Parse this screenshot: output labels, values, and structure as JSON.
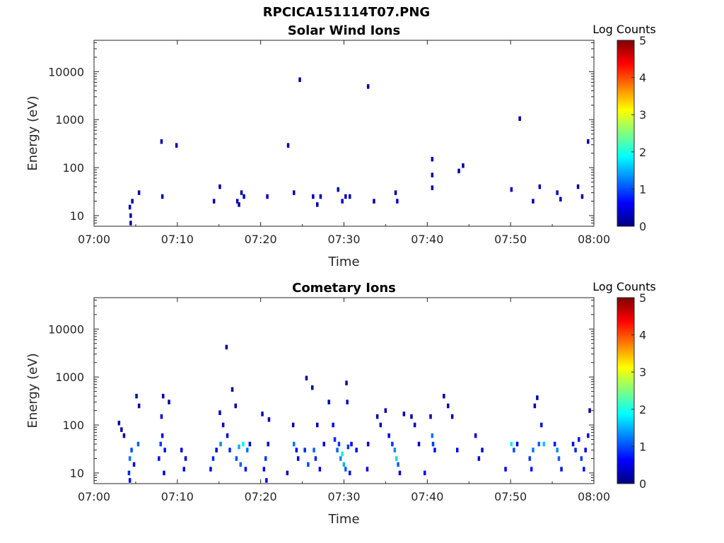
{
  "figure": {
    "title": "RPCICA151114T07.PNG"
  },
  "colormap": {
    "name": "jet",
    "stops": [
      "#00007f",
      "#0000ff",
      "#007fff",
      "#00ffff",
      "#7fff7f",
      "#ffff00",
      "#ff7f00",
      "#ff0000",
      "#7f0000"
    ]
  },
  "chart_data": [
    {
      "type": "heatmap",
      "title": "Solar Wind Ions",
      "xlabel": "Time",
      "ylabel": "Energy (eV)",
      "x_ticks": [
        "07:00",
        "07:10",
        "07:20",
        "07:30",
        "07:40",
        "07:50",
        "08:00"
      ],
      "xlim_minutes": [
        0,
        60
      ],
      "y_scale": "log",
      "y_ticks": [
        "10",
        "100",
        "1000",
        "10000"
      ],
      "ylim_eV": [
        6,
        45000
      ],
      "colorbar": {
        "label": "Log Counts",
        "range": [
          0,
          5
        ],
        "ticks": [
          "0",
          "1",
          "2",
          "3",
          "4",
          "5"
        ]
      },
      "cells": [
        {
          "t": 4.3,
          "e": 15,
          "v": 0.2
        },
        {
          "t": 4.4,
          "e": 10,
          "v": 0.2
        },
        {
          "t": 4.4,
          "e": 7,
          "v": 0.2
        },
        {
          "t": 4.6,
          "e": 20,
          "v": 0.2
        },
        {
          "t": 5.4,
          "e": 30,
          "v": 0.2
        },
        {
          "t": 8.2,
          "e": 25,
          "v": 0.3
        },
        {
          "t": 8.1,
          "e": 350,
          "v": 0.2
        },
        {
          "t": 9.9,
          "e": 290,
          "v": 0.2
        },
        {
          "t": 14.4,
          "e": 20,
          "v": 0.2
        },
        {
          "t": 15.1,
          "e": 40,
          "v": 0.2
        },
        {
          "t": 17.2,
          "e": 20,
          "v": 0.3
        },
        {
          "t": 17.4,
          "e": 17,
          "v": 0.2
        },
        {
          "t": 17.7,
          "e": 30,
          "v": 0.2
        },
        {
          "t": 18.0,
          "e": 25,
          "v": 0.3
        },
        {
          "t": 20.8,
          "e": 25,
          "v": 0.3
        },
        {
          "t": 23.3,
          "e": 290,
          "v": 0.2
        },
        {
          "t": 24.0,
          "e": 30,
          "v": 0.2
        },
        {
          "t": 24.7,
          "e": 6800,
          "v": 0.2
        },
        {
          "t": 26.3,
          "e": 25,
          "v": 0.2
        },
        {
          "t": 26.8,
          "e": 17,
          "v": 0.2
        },
        {
          "t": 27.2,
          "e": 25,
          "v": 0.3
        },
        {
          "t": 29.3,
          "e": 35,
          "v": 0.2
        },
        {
          "t": 29.8,
          "e": 20,
          "v": 0.4
        },
        {
          "t": 30.2,
          "e": 25,
          "v": 0.3
        },
        {
          "t": 30.7,
          "e": 25,
          "v": 0.2
        },
        {
          "t": 32.9,
          "e": 4900,
          "v": 0.2
        },
        {
          "t": 33.6,
          "e": 20,
          "v": 0.2
        },
        {
          "t": 36.2,
          "e": 30,
          "v": 0.2
        },
        {
          "t": 36.4,
          "e": 20,
          "v": 0.4
        },
        {
          "t": 40.6,
          "e": 150,
          "v": 0.2
        },
        {
          "t": 40.6,
          "e": 70,
          "v": 0.2
        },
        {
          "t": 40.6,
          "e": 38,
          "v": 0.2
        },
        {
          "t": 43.8,
          "e": 85,
          "v": 0.2
        },
        {
          "t": 44.3,
          "e": 110,
          "v": 0.2
        },
        {
          "t": 50.1,
          "e": 35,
          "v": 0.3
        },
        {
          "t": 51.1,
          "e": 1050,
          "v": 0.2
        },
        {
          "t": 52.7,
          "e": 20,
          "v": 0.2
        },
        {
          "t": 53.5,
          "e": 40,
          "v": 0.2
        },
        {
          "t": 55.6,
          "e": 30,
          "v": 0.3
        },
        {
          "t": 56.0,
          "e": 22,
          "v": 0.3
        },
        {
          "t": 58.1,
          "e": 40,
          "v": 0.2
        },
        {
          "t": 58.6,
          "e": 25,
          "v": 0.2
        },
        {
          "t": 59.3,
          "e": 350,
          "v": 0.2
        }
      ]
    },
    {
      "type": "heatmap",
      "title": "Cometary Ions",
      "xlabel": "Time",
      "ylabel": "Energy (eV)",
      "x_ticks": [
        "07:00",
        "07:10",
        "07:20",
        "07:30",
        "07:40",
        "07:50",
        "08:00"
      ],
      "xlim_minutes": [
        0,
        60
      ],
      "y_scale": "log",
      "y_ticks": [
        "10",
        "100",
        "1000",
        "10000"
      ],
      "ylim_eV": [
        6,
        45000
      ],
      "colorbar": {
        "label": "Log Counts",
        "range": [
          0,
          5
        ],
        "ticks": [
          "0",
          "1",
          "2",
          "3",
          "4",
          "5"
        ]
      },
      "cells": [
        {
          "t": 3.0,
          "e": 110,
          "v": 0.2
        },
        {
          "t": 3.3,
          "e": 80,
          "v": 0.2
        },
        {
          "t": 3.6,
          "e": 60,
          "v": 0.2
        },
        {
          "t": 4.2,
          "e": 10,
          "v": 0.8
        },
        {
          "t": 4.3,
          "e": 20,
          "v": 1.2
        },
        {
          "t": 4.3,
          "e": 7,
          "v": 0.6
        },
        {
          "t": 4.5,
          "e": 30,
          "v": 1.0
        },
        {
          "t": 4.8,
          "e": 15,
          "v": 0.6
        },
        {
          "t": 5.3,
          "e": 40,
          "v": 1.1
        },
        {
          "t": 5.1,
          "e": 400,
          "v": 0.2
        },
        {
          "t": 5.4,
          "e": 250,
          "v": 0.2
        },
        {
          "t": 7.8,
          "e": 20,
          "v": 0.7
        },
        {
          "t": 8.0,
          "e": 40,
          "v": 0.9
        },
        {
          "t": 8.1,
          "e": 150,
          "v": 0.5
        },
        {
          "t": 8.2,
          "e": 60,
          "v": 0.6
        },
        {
          "t": 8.3,
          "e": 400,
          "v": 0.3
        },
        {
          "t": 8.5,
          "e": 30,
          "v": 0.7
        },
        {
          "t": 8.4,
          "e": 10,
          "v": 0.6
        },
        {
          "t": 9.0,
          "e": 300,
          "v": 0.2
        },
        {
          "t": 10.5,
          "e": 30,
          "v": 0.5
        },
        {
          "t": 10.8,
          "e": 12,
          "v": 0.6
        },
        {
          "t": 11.0,
          "e": 20,
          "v": 0.4
        },
        {
          "t": 14.0,
          "e": 12,
          "v": 0.6
        },
        {
          "t": 14.3,
          "e": 20,
          "v": 0.8
        },
        {
          "t": 14.7,
          "e": 30,
          "v": 0.4
        },
        {
          "t": 15.2,
          "e": 40,
          "v": 1.3
        },
        {
          "t": 15.1,
          "e": 180,
          "v": 0.4
        },
        {
          "t": 15.5,
          "e": 100,
          "v": 0.4
        },
        {
          "t": 15.9,
          "e": 4200,
          "v": 0.2
        },
        {
          "t": 16.0,
          "e": 60,
          "v": 0.5
        },
        {
          "t": 16.3,
          "e": 30,
          "v": 0.8
        },
        {
          "t": 16.6,
          "e": 550,
          "v": 0.2
        },
        {
          "t": 17.0,
          "e": 250,
          "v": 0.2
        },
        {
          "t": 17.1,
          "e": 20,
          "v": 1.0
        },
        {
          "t": 17.4,
          "e": 35,
          "v": 1.5
        },
        {
          "t": 17.6,
          "e": 15,
          "v": 1.1
        },
        {
          "t": 17.9,
          "e": 40,
          "v": 1.8
        },
        {
          "t": 18.2,
          "e": 12,
          "v": 0.7
        },
        {
          "t": 18.4,
          "e": 30,
          "v": 1.2
        },
        {
          "t": 18.7,
          "e": 40,
          "v": 0.5
        },
        {
          "t": 20.2,
          "e": 170,
          "v": 0.2
        },
        {
          "t": 20.4,
          "e": 12,
          "v": 0.7
        },
        {
          "t": 20.6,
          "e": 20,
          "v": 0.9
        },
        {
          "t": 20.7,
          "e": 7,
          "v": 0.6
        },
        {
          "t": 20.9,
          "e": 40,
          "v": 0.5
        },
        {
          "t": 21.0,
          "e": 130,
          "v": 0.3
        },
        {
          "t": 23.2,
          "e": 10,
          "v": 0.3
        },
        {
          "t": 23.9,
          "e": 100,
          "v": 0.3
        },
        {
          "t": 24.0,
          "e": 40,
          "v": 1.2
        },
        {
          "t": 24.3,
          "e": 30,
          "v": 0.6
        },
        {
          "t": 24.5,
          "e": 20,
          "v": 0.5
        },
        {
          "t": 25.3,
          "e": 30,
          "v": 0.8
        },
        {
          "t": 25.5,
          "e": 950,
          "v": 0.2
        },
        {
          "t": 25.7,
          "e": 15,
          "v": 1.0
        },
        {
          "t": 26.2,
          "e": 600,
          "v": 0.2
        },
        {
          "t": 26.4,
          "e": 30,
          "v": 1.1
        },
        {
          "t": 26.6,
          "e": 20,
          "v": 0.8
        },
        {
          "t": 26.8,
          "e": 100,
          "v": 0.3
        },
        {
          "t": 27.1,
          "e": 12,
          "v": 0.6
        },
        {
          "t": 27.6,
          "e": 40,
          "v": 0.5
        },
        {
          "t": 28.2,
          "e": 300,
          "v": 0.2
        },
        {
          "t": 28.7,
          "e": 100,
          "v": 0.6
        },
        {
          "t": 28.9,
          "e": 50,
          "v": 0.8
        },
        {
          "t": 29.2,
          "e": 30,
          "v": 1.1
        },
        {
          "t": 29.4,
          "e": 40,
          "v": 0.9
        },
        {
          "t": 29.6,
          "e": 20,
          "v": 1.3
        },
        {
          "t": 29.8,
          "e": 25,
          "v": 1.8
        },
        {
          "t": 30.0,
          "e": 15,
          "v": 1.5
        },
        {
          "t": 30.2,
          "e": 12,
          "v": 1.1
        },
        {
          "t": 30.3,
          "e": 750,
          "v": 0.2
        },
        {
          "t": 30.4,
          "e": 300,
          "v": 0.3
        },
        {
          "t": 30.5,
          "e": 35,
          "v": 0.9
        },
        {
          "t": 30.7,
          "e": 10,
          "v": 0.7
        },
        {
          "t": 30.9,
          "e": 40,
          "v": 0.6
        },
        {
          "t": 31.5,
          "e": 30,
          "v": 0.5
        },
        {
          "t": 32.8,
          "e": 12,
          "v": 0.6
        },
        {
          "t": 32.9,
          "e": 40,
          "v": 0.5
        },
        {
          "t": 34.0,
          "e": 150,
          "v": 0.2
        },
        {
          "t": 34.4,
          "e": 100,
          "v": 0.3
        },
        {
          "t": 35.0,
          "e": 200,
          "v": 0.2
        },
        {
          "t": 35.4,
          "e": 60,
          "v": 0.5
        },
        {
          "t": 35.8,
          "e": 40,
          "v": 0.9
        },
        {
          "t": 36.1,
          "e": 30,
          "v": 1.3
        },
        {
          "t": 36.3,
          "e": 20,
          "v": 1.7
        },
        {
          "t": 36.5,
          "e": 15,
          "v": 1.1
        },
        {
          "t": 36.7,
          "e": 10,
          "v": 0.6
        },
        {
          "t": 37.2,
          "e": 170,
          "v": 0.2
        },
        {
          "t": 38.1,
          "e": 150,
          "v": 0.2
        },
        {
          "t": 38.5,
          "e": 100,
          "v": 0.3
        },
        {
          "t": 39.0,
          "e": 40,
          "v": 0.4
        },
        {
          "t": 39.7,
          "e": 10,
          "v": 0.6
        },
        {
          "t": 40.4,
          "e": 150,
          "v": 0.3
        },
        {
          "t": 40.6,
          "e": 60,
          "v": 1.2
        },
        {
          "t": 40.7,
          "e": 40,
          "v": 0.9
        },
        {
          "t": 40.9,
          "e": 30,
          "v": 0.6
        },
        {
          "t": 42.0,
          "e": 400,
          "v": 0.2
        },
        {
          "t": 42.5,
          "e": 250,
          "v": 0.2
        },
        {
          "t": 43.0,
          "e": 150,
          "v": 0.2
        },
        {
          "t": 43.6,
          "e": 30,
          "v": 0.6
        },
        {
          "t": 45.8,
          "e": 60,
          "v": 0.4
        },
        {
          "t": 46.2,
          "e": 20,
          "v": 0.5
        },
        {
          "t": 46.6,
          "e": 30,
          "v": 0.3
        },
        {
          "t": 49.4,
          "e": 12,
          "v": 0.5
        },
        {
          "t": 50.1,
          "e": 40,
          "v": 1.8
        },
        {
          "t": 50.4,
          "e": 30,
          "v": 1.0
        },
        {
          "t": 50.8,
          "e": 40,
          "v": 0.5
        },
        {
          "t": 52.3,
          "e": 20,
          "v": 0.9
        },
        {
          "t": 52.5,
          "e": 12,
          "v": 0.7
        },
        {
          "t": 52.7,
          "e": 30,
          "v": 1.2
        },
        {
          "t": 52.9,
          "e": 250,
          "v": 0.3
        },
        {
          "t": 53.2,
          "e": 370,
          "v": 0.2
        },
        {
          "t": 53.4,
          "e": 40,
          "v": 1.1
        },
        {
          "t": 53.7,
          "e": 100,
          "v": 0.7
        },
        {
          "t": 54.0,
          "e": 40,
          "v": 1.6
        },
        {
          "t": 55.3,
          "e": 40,
          "v": 0.7
        },
        {
          "t": 55.6,
          "e": 30,
          "v": 1.3
        },
        {
          "t": 55.8,
          "e": 20,
          "v": 1.1
        },
        {
          "t": 56.1,
          "e": 12,
          "v": 0.7
        },
        {
          "t": 57.5,
          "e": 40,
          "v": 0.6
        },
        {
          "t": 57.8,
          "e": 30,
          "v": 0.8
        },
        {
          "t": 58.2,
          "e": 50,
          "v": 0.7
        },
        {
          "t": 58.5,
          "e": 20,
          "v": 0.9
        },
        {
          "t": 58.8,
          "e": 12,
          "v": 0.7
        },
        {
          "t": 59.0,
          "e": 30,
          "v": 0.5
        },
        {
          "t": 59.3,
          "e": 60,
          "v": 0.6
        },
        {
          "t": 59.5,
          "e": 200,
          "v": 0.2
        }
      ]
    }
  ]
}
